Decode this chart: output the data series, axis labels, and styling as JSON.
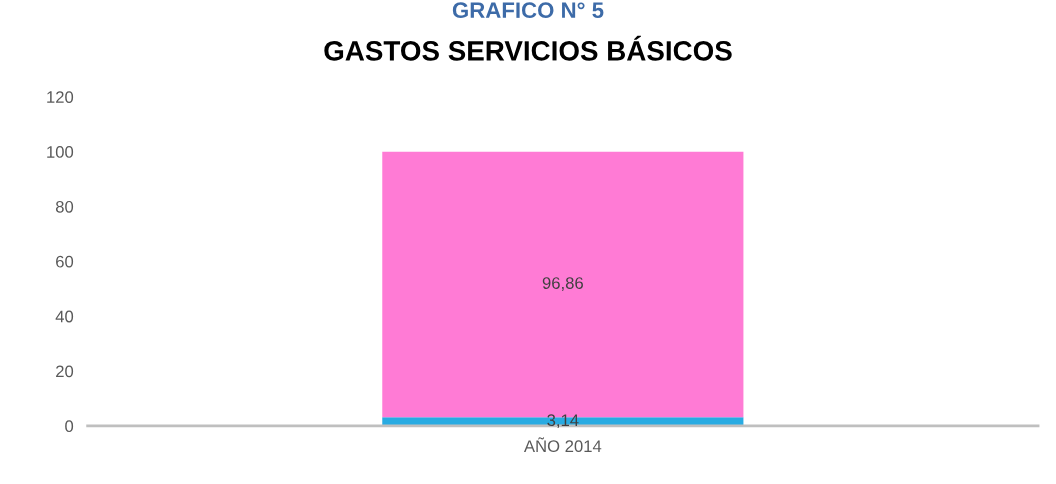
{
  "chart_data": {
    "type": "bar",
    "title": "GASTOS SERVICIOS BÁSICOS",
    "annotations": [
      "GRAFICO N° 5"
    ],
    "categories": [
      "AÑO 2014"
    ],
    "stacked": true,
    "series": [
      {
        "color": "#29abe2",
        "values": [
          3.14
        ],
        "value_labels": [
          "3,14"
        ]
      },
      {
        "color": "#ff7bd5",
        "values": [
          96.86
        ],
        "value_labels": [
          "96,86"
        ]
      }
    ],
    "ylim": [
      0,
      120
    ],
    "yticks": [
      0,
      20,
      40,
      60,
      80,
      100,
      120
    ],
    "grid": false,
    "legend": false
  }
}
